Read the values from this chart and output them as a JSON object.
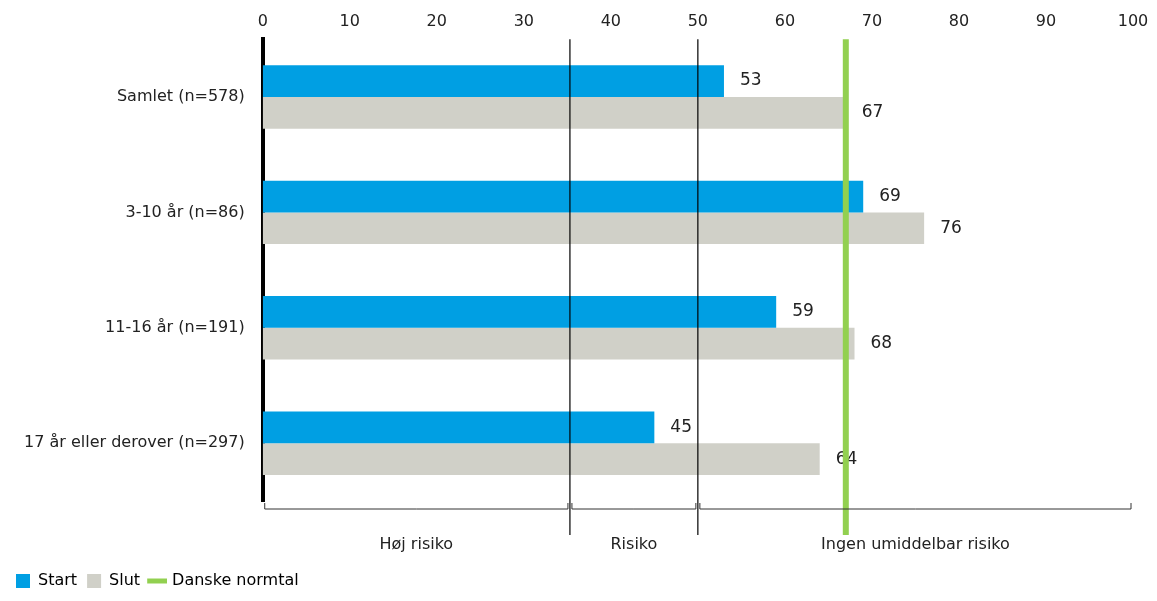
{
  "chart_data": {
    "type": "bar",
    "orientation": "horizontal",
    "categories": [
      "Samlet (n=578)",
      "3-10 år (n=86)",
      "11-16 år (n=191)",
      "17 år eller derover (n=297)"
    ],
    "series": [
      {
        "name": "Start",
        "color": "#009fe3",
        "values": [
          53,
          69,
          59,
          45
        ]
      },
      {
        "name": "Slut",
        "color": "#d0d0c8",
        "values": [
          67,
          76,
          68,
          64
        ]
      }
    ],
    "xlim": [
      0,
      100
    ],
    "xticks": [
      0,
      10,
      20,
      30,
      40,
      50,
      60,
      70,
      80,
      90,
      100
    ],
    "data_labels": true,
    "grid": false,
    "legend": "bottom left",
    "ref_lines": [
      {
        "axis": "x",
        "value": 35.3,
        "color": "#000000"
      },
      {
        "axis": "x",
        "value": 50,
        "color": "#000000"
      },
      {
        "axis": "x",
        "value": 67,
        "label": "Danske normtal",
        "color": "#92d050"
      }
    ],
    "annotations": [
      "Høj risiko",
      "Risiko",
      "Ingen umiddelbar risiko"
    ]
  }
}
